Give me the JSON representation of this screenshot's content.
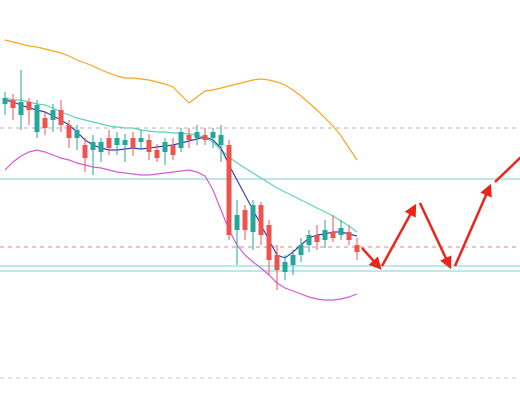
{
  "chart_data": {
    "type": "candlestick",
    "ylim": [
      0,
      400
    ],
    "up_color": "#26a69a",
    "down_color": "#ef5350",
    "categories": [
      null,
      null,
      null,
      null,
      null,
      null,
      null,
      null,
      null,
      null,
      null,
      null,
      null,
      null,
      null,
      null,
      null,
      null,
      null,
      null,
      null,
      null,
      null,
      null,
      null,
      null,
      null,
      null,
      null,
      null,
      null,
      null,
      null,
      null,
      null,
      null,
      null,
      null,
      null,
      null,
      null,
      null,
      null,
      null,
      null
    ],
    "open": [
      296,
      300,
      285,
      298,
      268,
      282,
      280,
      290,
      275,
      262,
      255,
      250,
      248,
      262,
      255,
      255,
      262,
      258,
      260,
      250,
      248,
      255,
      252,
      265,
      262,
      265,
      262,
      255,
      255,
      170,
      190,
      168,
      195,
      175,
      145,
      128,
      135,
      145,
      155,
      165,
      160,
      168,
      165,
      168,
      155
    ],
    "high": [
      308,
      306,
      330,
      302,
      300,
      288,
      296,
      300,
      280,
      275,
      262,
      265,
      262,
      270,
      268,
      266,
      268,
      270,
      266,
      256,
      262,
      262,
      272,
      272,
      275,
      272,
      272,
      275,
      260,
      200,
      195,
      200,
      198,
      180,
      155,
      145,
      150,
      162,
      170,
      175,
      180,
      185,
      180,
      175,
      162
    ],
    "low": [
      285,
      280,
      270,
      275,
      262,
      265,
      268,
      268,
      252,
      250,
      228,
      225,
      238,
      245,
      245,
      238,
      244,
      250,
      240,
      238,
      235,
      240,
      248,
      252,
      255,
      255,
      252,
      238,
      160,
      135,
      160,
      150,
      155,
      125,
      110,
      120,
      125,
      138,
      148,
      150,
      152,
      158,
      160,
      155,
      140
    ],
    "close": [
      302,
      292,
      298,
      290,
      295,
      272,
      290,
      275,
      262,
      270,
      242,
      258,
      258,
      252,
      262,
      260,
      252,
      262,
      248,
      242,
      258,
      245,
      268,
      260,
      268,
      260,
      268,
      265,
      165,
      185,
      170,
      195,
      165,
      140,
      130,
      138,
      145,
      155,
      165,
      158,
      170,
      162,
      172,
      160,
      148
    ],
    "lines": [
      {
        "color": "#f5a623",
        "values": [
          360,
          358,
          356,
          354,
          353,
          351,
          349,
          347,
          344,
          340,
          337,
          334,
          330,
          327,
          324,
          322,
          322,
          321,
          320,
          318,
          316,
          313,
          305,
          297,
          303,
          309,
          310,
          312,
          314,
          316,
          318,
          320,
          321,
          320,
          318,
          315,
          310,
          304,
          297,
          290,
          282,
          274,
          264,
          252,
          240
        ]
      },
      {
        "color": "#5fd3b3",
        "values": [
          302,
          300,
          300,
          298,
          296,
          295,
          292,
          288,
          285,
          282,
          280,
          278,
          276,
          274,
          273,
          272,
          272,
          270,
          269,
          268,
          268,
          267,
          267,
          266,
          265,
          262,
          258,
          250,
          243,
          237,
          232,
          227,
          222,
          217,
          212,
          208,
          204,
          200,
          196,
          192,
          188,
          184,
          179,
          174,
          168
        ]
      },
      {
        "color": "#d65bd6",
        "values": [
          230,
          238,
          244,
          248,
          250,
          248,
          245,
          242,
          240,
          237,
          235,
          233,
          232,
          230,
          228,
          227,
          226,
          225,
          225,
          226,
          227,
          228,
          229,
          230,
          228,
          224,
          210,
          190,
          170,
          155,
          145,
          138,
          132,
          125,
          117,
          112,
          109,
          106,
          103,
          101,
          100,
          100,
          101,
          103,
          106
        ]
      },
      {
        "color": "#3b3fb0",
        "values": [
          300,
          298,
          295,
          292,
          290,
          288,
          284,
          280,
          275,
          268,
          260,
          255,
          252,
          250,
          250,
          251,
          252,
          251,
          252,
          253,
          254,
          255,
          257,
          259,
          261,
          263,
          260,
          252,
          235,
          220,
          205,
          190,
          175,
          160,
          145,
          142,
          148,
          155,
          162,
          165,
          166,
          168,
          168,
          166,
          164
        ]
      }
    ],
    "levels": [
      {
        "value": 272,
        "color": "#b0b0b0",
        "dash": true
      },
      {
        "value": 221,
        "color": "#7fcdd6",
        "dash": false
      },
      {
        "value": 153,
        "color": "#e88080",
        "dash": true
      },
      {
        "value": 134,
        "color": "#7fcdd6",
        "dash": false
      },
      {
        "value": 129,
        "color": "#7fcdd6",
        "dash": false
      },
      {
        "value": 22,
        "color": "#c8c8c8",
        "dash": true
      }
    ]
  }
}
